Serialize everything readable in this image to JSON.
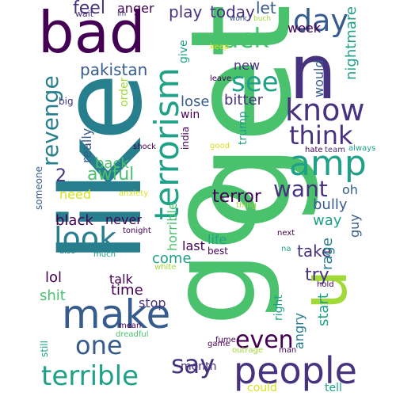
{
  "colors": {
    "background": "#ffffff",
    "yellow": "#d8e219",
    "lime": "#a0da39",
    "green": "#4ac16d",
    "teal": "#1fa187",
    "cyan": "#277f8e",
    "blue": "#365c8d",
    "indigo": "#46327e",
    "purple": "#440154"
  },
  "words": [
    {
      "text": "bad",
      "color": "purple"
    },
    {
      "text": "get",
      "color": "green"
    },
    {
      "text": "like",
      "color": "cyan"
    },
    {
      "text": "go",
      "color": "green"
    },
    {
      "text": "u",
      "color": "lime"
    },
    {
      "text": "n",
      "color": "indigo"
    },
    {
      "text": "people",
      "color": "indigo"
    },
    {
      "text": "make",
      "color": "blue"
    },
    {
      "text": "amp",
      "color": "teal"
    },
    {
      "text": "terrorism",
      "color": "teal"
    },
    {
      "text": "day",
      "color": "blue"
    },
    {
      "text": "know",
      "color": "indigo"
    },
    {
      "text": "look",
      "color": "cyan"
    },
    {
      "text": "terrible",
      "color": "teal"
    },
    {
      "text": "see",
      "color": "teal"
    },
    {
      "text": "fuck",
      "color": "green"
    },
    {
      "text": "think",
      "color": "indigo"
    },
    {
      "text": "say",
      "color": "indigo"
    },
    {
      "text": "revenge",
      "color": "cyan"
    },
    {
      "text": "one",
      "color": "blue"
    },
    {
      "text": "even",
      "color": "purple"
    },
    {
      "text": "want",
      "color": "indigo"
    },
    {
      "text": "pakistan",
      "color": "blue"
    },
    {
      "text": "terror",
      "color": "purple"
    },
    {
      "text": "awful",
      "color": "green"
    },
    {
      "text": "feel",
      "color": "indigo"
    },
    {
      "text": "play",
      "color": "indigo"
    },
    {
      "text": "today",
      "color": "indigo"
    },
    {
      "text": "let",
      "color": "blue"
    },
    {
      "text": "lose",
      "color": "blue"
    },
    {
      "text": "bitter",
      "color": "indigo"
    },
    {
      "text": "2",
      "color": "indigo"
    },
    {
      "text": "anger",
      "color": "purple"
    },
    {
      "text": "black",
      "color": "purple"
    },
    {
      "text": "back",
      "color": "green"
    },
    {
      "text": "really",
      "color": "blue"
    },
    {
      "text": "need",
      "color": "yellow"
    },
    {
      "text": "nightmare",
      "color": "teal"
    },
    {
      "text": "week",
      "color": "purple"
    },
    {
      "text": "new",
      "color": "indigo"
    },
    {
      "text": "take",
      "color": "indigo"
    },
    {
      "text": "rage",
      "color": "cyan"
    },
    {
      "text": "try",
      "color": "indigo"
    },
    {
      "text": "start",
      "color": "teal"
    },
    {
      "text": "bully",
      "color": "blue"
    },
    {
      "text": "way",
      "color": "teal"
    },
    {
      "text": "guy",
      "color": "blue"
    },
    {
      "text": "oh",
      "color": "blue"
    },
    {
      "text": "angry",
      "color": "cyan"
    },
    {
      "text": "lol",
      "color": "purple"
    },
    {
      "text": "shit",
      "color": "green"
    },
    {
      "text": "time",
      "color": "purple"
    },
    {
      "text": "talk",
      "color": "purple"
    },
    {
      "text": "stop",
      "color": "indigo"
    },
    {
      "text": "never",
      "color": "purple"
    },
    {
      "text": "come",
      "color": "teal"
    },
    {
      "text": "last",
      "color": "purple"
    },
    {
      "text": "life",
      "color": "teal"
    },
    {
      "text": "best",
      "color": "purple"
    },
    {
      "text": "horrible",
      "color": "green"
    },
    {
      "text": "right",
      "color": "teal"
    },
    {
      "text": "would",
      "color": "blue"
    },
    {
      "text": "trump",
      "color": "teal"
    },
    {
      "text": "win",
      "color": "purple"
    },
    {
      "text": "order",
      "color": "lime"
    },
    {
      "text": "india",
      "color": "purple"
    },
    {
      "text": "give",
      "color": "teal"
    },
    {
      "text": "month",
      "color": "indigo"
    },
    {
      "text": "could",
      "color": "yellow"
    },
    {
      "text": "tell",
      "color": "teal"
    },
    {
      "text": "someone",
      "color": "blue"
    },
    {
      "text": "still",
      "color": "teal"
    },
    {
      "text": "big",
      "color": "indigo"
    },
    {
      "text": "wait",
      "color": "indigo"
    },
    {
      "text": "im",
      "color": "indigo"
    },
    {
      "text": "work",
      "color": "blue"
    },
    {
      "text": "buch",
      "color": "lime"
    },
    {
      "text": "keep",
      "color": "yellow"
    },
    {
      "text": "leave",
      "color": "purple"
    },
    {
      "text": "good",
      "color": "yellow"
    },
    {
      "text": "hate",
      "color": "purple"
    },
    {
      "text": "team",
      "color": "indigo"
    },
    {
      "text": "always",
      "color": "teal"
    },
    {
      "text": "shock",
      "color": "purple"
    },
    {
      "text": "anxiety",
      "color": "yellow"
    },
    {
      "text": "tonight",
      "color": "purple"
    },
    {
      "text": "thing",
      "color": "lime"
    },
    {
      "text": "also",
      "color": "cyan"
    },
    {
      "text": "much",
      "color": "teal"
    },
    {
      "text": "white",
      "color": "lime"
    },
    {
      "text": "next",
      "color": "purple"
    },
    {
      "text": "na",
      "color": "teal"
    },
    {
      "text": "hold",
      "color": "purple"
    },
    {
      "text": "mean",
      "color": "purple"
    },
    {
      "text": "dreadful",
      "color": "green"
    },
    {
      "text": "fume",
      "color": "purple"
    },
    {
      "text": "game",
      "color": "purple"
    },
    {
      "text": "outrage",
      "color": "lime"
    },
    {
      "text": "man",
      "color": "purple"
    }
  ]
}
